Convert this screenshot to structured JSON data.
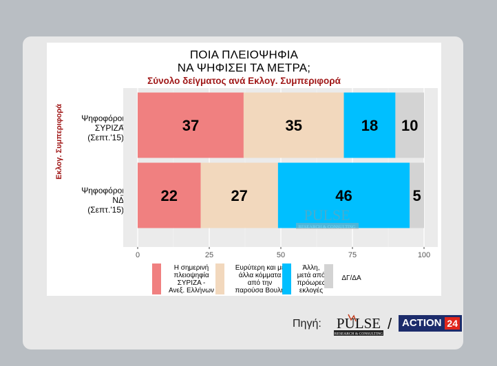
{
  "title_line1": "ΠΟΙΑ ΠΛΕΙΟΨΗΦΙΑ",
  "title_line2": "ΝΑ ΨΗΦΙΣΕΙ ΤΑ ΜΕΤΡΑ;",
  "subtitle": "Σύνολο δείγματος ανά Εκλογ. Συμπεριφορά",
  "source_label": "Πηγή:",
  "pulse_logo_text": "PULSE",
  "pulse_logo_sub": "RESEARCH & CONSULTING",
  "action_logo_text": "ACTION",
  "action_logo_num": "24",
  "slash": "/",
  "chart_data": {
    "type": "bar",
    "orientation": "horizontal",
    "stacked": true,
    "ylabel": "Εκλογ. Συμπεριφορά",
    "xlabel": "",
    "xlim": [
      0,
      100
    ],
    "x_ticks": [
      0,
      25,
      50,
      75,
      100
    ],
    "grid": true,
    "legend_position": "bottom",
    "categories": [
      [
        "Ψηφοφόροι",
        "ΣΥΡΙΖΑ",
        "(Σεπτ.'15)"
      ],
      [
        "Ψηφοφόροι",
        "ΝΔ",
        "(Σεπτ.'15)"
      ]
    ],
    "series": [
      {
        "name": [
          "Η σημερινή",
          "πλειοψηφία",
          "ΣΥΡΙΖΑ -",
          "Ανεξ. Ελλήνων"
        ],
        "color": "#f08080",
        "values": [
          37,
          22
        ]
      },
      {
        "name": [
          "Ευρύτερη και με",
          "άλλα κόμματα",
          "από την",
          "παρούσα Βουλή"
        ],
        "color": "#f2d8bd",
        "values": [
          35,
          27
        ]
      },
      {
        "name": [
          "Άλλη,",
          "μετά από",
          "πρόωρες",
          "εκλογές"
        ],
        "color": "#00bfff",
        "values": [
          18,
          46
        ]
      },
      {
        "name": [
          "ΔΓ/ΔΑ"
        ],
        "color": "#d3d3d3",
        "values": [
          10,
          5
        ]
      }
    ]
  }
}
